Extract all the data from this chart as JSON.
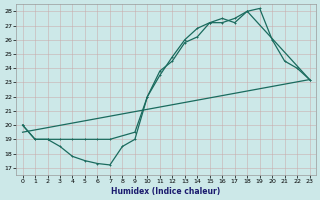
{
  "title": "",
  "xlabel": "Humidex (Indice chaleur)",
  "ylabel": "",
  "bg_color": "#cce8e8",
  "line_color": "#1a6b5e",
  "grid_color": "#b8d8d8",
  "xlim": [
    -0.5,
    23.5
  ],
  "ylim": [
    16.5,
    28.5
  ],
  "xticks": [
    0,
    1,
    2,
    3,
    4,
    5,
    6,
    7,
    8,
    9,
    10,
    11,
    12,
    13,
    14,
    15,
    16,
    17,
    18,
    19,
    20,
    21,
    22,
    23
  ],
  "yticks": [
    17,
    18,
    19,
    20,
    21,
    22,
    23,
    24,
    25,
    26,
    27,
    28
  ],
  "line1_x": [
    0,
    1,
    2,
    3,
    4,
    5,
    6,
    7,
    9,
    10,
    11,
    12,
    13,
    14,
    15,
    16,
    17,
    18,
    23
  ],
  "line1_y": [
    20,
    19,
    19,
    19,
    19,
    19,
    19,
    19,
    19.5,
    22,
    23.5,
    24.8,
    26.0,
    26.8,
    27.2,
    27.2,
    27.5,
    28.0,
    23.2
  ],
  "line2_x": [
    0,
    1,
    2,
    3,
    4,
    5,
    6,
    7,
    8,
    9,
    10,
    11,
    12,
    13,
    14,
    15,
    16,
    17,
    18,
    19,
    20,
    21,
    22,
    23
  ],
  "line2_y": [
    20,
    19,
    19,
    18.5,
    17.8,
    17.5,
    17.3,
    17.2,
    18.5,
    19.0,
    22.0,
    23.8,
    24.5,
    25.8,
    26.2,
    27.2,
    27.5,
    27.2,
    28.0,
    28.2,
    26.0,
    24.5,
    24.0,
    23.2
  ],
  "line3_x": [
    0,
    23
  ],
  "line3_y": [
    19.5,
    23.2
  ],
  "figsize": [
    3.2,
    2.0
  ],
  "dpi": 100
}
